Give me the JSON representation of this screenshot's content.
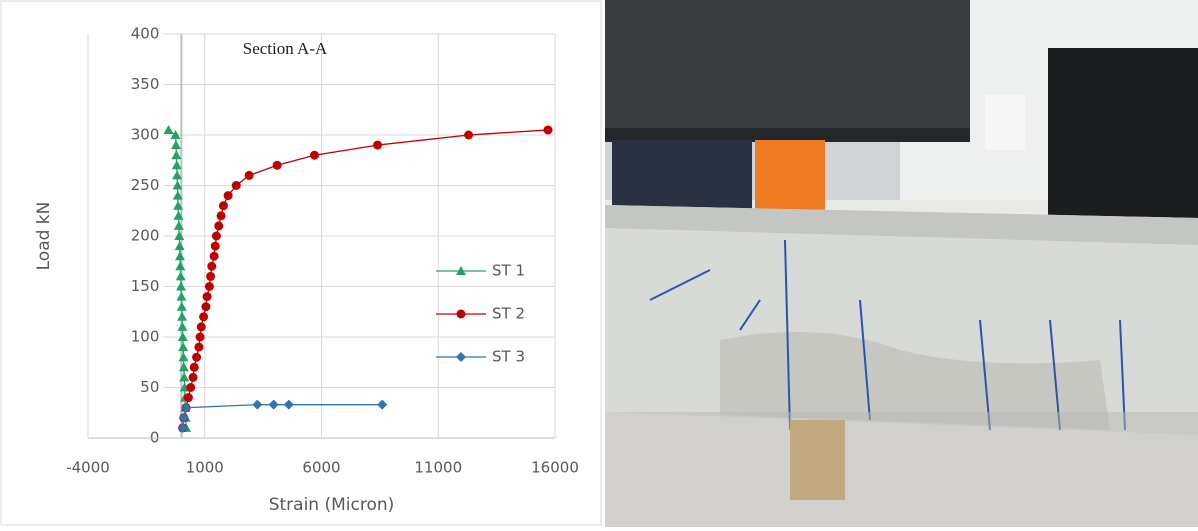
{
  "chart_data": {
    "type": "scatter",
    "title": "Section A-A",
    "x_label": "Strain (Micron)",
    "y_label": "Load kN",
    "xlim": [
      -4000,
      16000
    ],
    "xticks": [
      -4000,
      1000,
      6000,
      11000,
      16000
    ],
    "ylim": [
      0,
      400
    ],
    "yticks": [
      0,
      50,
      100,
      150,
      200,
      250,
      300,
      350,
      400
    ],
    "grid": true,
    "legend": "right",
    "series": [
      {
        "name": "ST 1",
        "color": "#21a366",
        "marker": "triangle",
        "x": [
          200,
          185,
          170,
          155,
          140,
          120,
          105,
          90,
          75,
          60,
          45,
          30,
          15,
          0,
          -15,
          -30,
          -45,
          -60,
          -75,
          -90,
          -110,
          -125,
          -140,
          -155,
          -170,
          -185,
          -200,
          -215,
          -230,
          -250,
          -550
        ],
        "y": [
          10,
          20,
          30,
          40,
          50,
          60,
          70,
          80,
          90,
          100,
          110,
          120,
          130,
          140,
          150,
          160,
          170,
          180,
          190,
          200,
          210,
          220,
          230,
          240,
          250,
          260,
          270,
          280,
          290,
          300,
          305
        ]
      },
      {
        "name": "ST 2",
        "color": "#c00000",
        "marker": "circle",
        "x": [
          50,
          100,
          200,
          300,
          400,
          500,
          550,
          650,
          750,
          800,
          850,
          950,
          1050,
          1100,
          1200,
          1250,
          1300,
          1400,
          1450,
          1500,
          1600,
          1700,
          1800,
          2000,
          2350,
          2900,
          4100,
          5700,
          8400,
          12300,
          15700
        ],
        "y": [
          10,
          20,
          30,
          40,
          50,
          60,
          70,
          80,
          90,
          100,
          110,
          120,
          130,
          140,
          150,
          160,
          170,
          180,
          190,
          200,
          210,
          220,
          230,
          240,
          250,
          260,
          270,
          280,
          290,
          300,
          305
        ]
      },
      {
        "name": "ST 3",
        "color": "#2e75b6",
        "marker": "diamond",
        "x": [
          50,
          100,
          200,
          3250,
          3950,
          4600,
          8600
        ],
        "y": [
          10,
          20,
          30,
          33,
          33,
          33,
          33
        ]
      }
    ]
  }
}
